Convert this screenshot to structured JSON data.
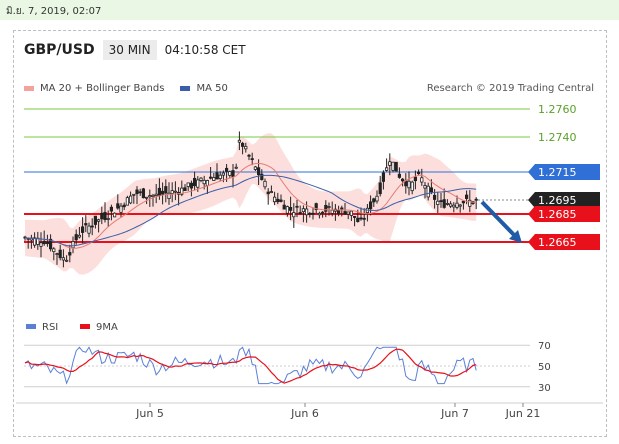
{
  "timestamp": "มิ.ย. 7, 2019, 02:07",
  "header": {
    "pair": "GBP/USD",
    "timeframe": "30 MIN",
    "time": "04:10:58 CET"
  },
  "legend": {
    "ma20": "MA 20 + Bollinger Bands",
    "ma50": "MA 50",
    "research": "Research © 2019 Trading Central",
    "rsi": "RSI",
    "ma9": "9MA"
  },
  "colors": {
    "green_level": "#7ac943",
    "blue_level": "#2f6fd6",
    "red_level": "#e8101a",
    "current_label_bg": "#222222",
    "bollinger_fill": "#fcd9d6",
    "ma20": "#e77b72",
    "ma50": "#3a5fa8",
    "candle_up": "#ffffff",
    "candle_down": "#222222",
    "arrow": "#1f5ba7"
  },
  "chart_data": [
    {
      "type": "candlestick",
      "x_tick_labels": [
        "Jun 5",
        "Jun 6",
        "Jun 7",
        "Jun 21"
      ],
      "ylim": [
        1.262,
        1.277
      ],
      "levels": [
        {
          "value": "1.2760",
          "style": "green-text"
        },
        {
          "value": "1.2740",
          "style": "green-text"
        },
        {
          "value": "1.2715",
          "style": "blue-label"
        },
        {
          "value": "1.2695",
          "style": "current-price-label"
        },
        {
          "value": "1.2685",
          "style": "red-label"
        },
        {
          "value": "1.2665",
          "style": "red-label"
        }
      ],
      "forecast_arrow": {
        "from": 1.2695,
        "to": 1.2665
      }
    },
    {
      "type": "line",
      "title": "RSI",
      "y_tick_labels": [
        "70",
        "50",
        "30"
      ],
      "ylim": [
        25,
        75
      ],
      "series": [
        {
          "name": "RSI"
        },
        {
          "name": "9MA"
        }
      ]
    }
  ]
}
